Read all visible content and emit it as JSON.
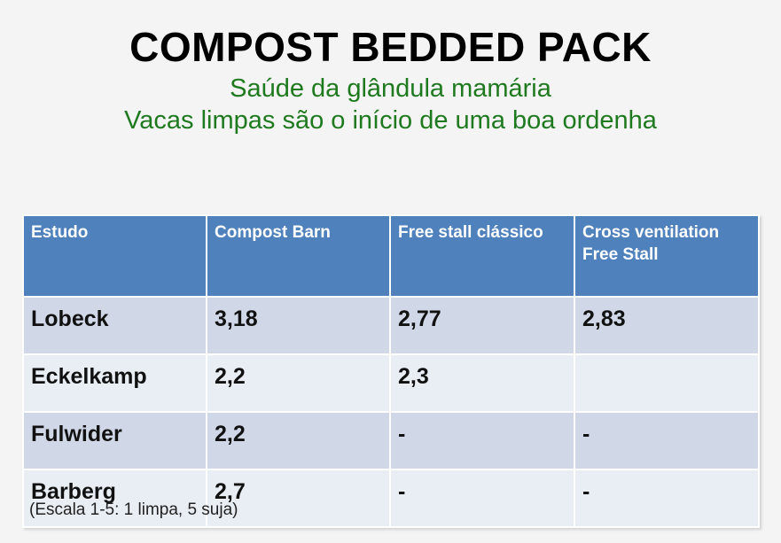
{
  "title": "COMPOST BEDDED PACK",
  "subtitle_line1": "Saúde da glândula mamária",
  "subtitle_line2": "Vacas limpas são o início de uma boa ordenha",
  "table": {
    "headers": [
      "Estudo",
      "Compost Barn",
      "Free stall clássico",
      "Cross ventilation Free Stall"
    ],
    "rows": [
      [
        "Lobeck",
        "3,18",
        "2,77",
        "2,83"
      ],
      [
        "Eckelkamp",
        "2,2",
        "2,3",
        ""
      ],
      [
        "Fulwider",
        "2,2",
        "-",
        "-"
      ],
      [
        "Barberg",
        "2,7",
        "-",
        "-"
      ]
    ]
  },
  "footnote": "(Escala 1-5: 1 limpa, 5 suja)",
  "colors": {
    "header_bg": "#4f81bd",
    "row_odd_bg": "#d0d8e8",
    "row_even_bg": "#e9edf4",
    "subtitle": "#1f7a1f"
  }
}
